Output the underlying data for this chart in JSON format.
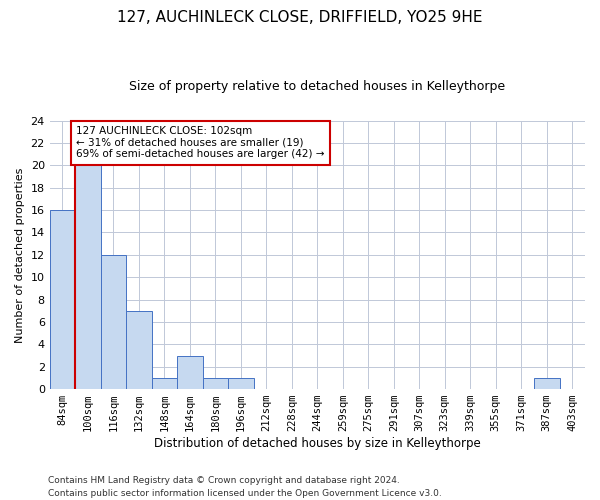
{
  "title": "127, AUCHINLECK CLOSE, DRIFFIELD, YO25 9HE",
  "subtitle": "Size of property relative to detached houses in Kelleythorpe",
  "xlabel": "Distribution of detached houses by size in Kelleythorpe",
  "ylabel": "Number of detached properties",
  "footer_line1": "Contains HM Land Registry data © Crown copyright and database right 2024.",
  "footer_line2": "Contains public sector information licensed under the Open Government Licence v3.0.",
  "categories": [
    "84sqm",
    "100sqm",
    "116sqm",
    "132sqm",
    "148sqm",
    "164sqm",
    "180sqm",
    "196sqm",
    "212sqm",
    "228sqm",
    "244sqm",
    "259sqm",
    "275sqm",
    "291sqm",
    "307sqm",
    "323sqm",
    "339sqm",
    "355sqm",
    "371sqm",
    "387sqm",
    "403sqm"
  ],
  "values": [
    16,
    20,
    12,
    7,
    1,
    3,
    1,
    1,
    0,
    0,
    0,
    0,
    0,
    0,
    0,
    0,
    0,
    0,
    0,
    1,
    0
  ],
  "bar_color": "#c6d9f0",
  "bar_edge_color": "#4472c4",
  "ylim": [
    0,
    24
  ],
  "yticks": [
    0,
    2,
    4,
    6,
    8,
    10,
    12,
    14,
    16,
    18,
    20,
    22,
    24
  ],
  "annotation_title": "127 AUCHINLECK CLOSE: 102sqm",
  "annotation_line1": "← 31% of detached houses are smaller (19)",
  "annotation_line2": "69% of semi-detached houses are larger (42) →",
  "annotation_box_color": "#ffffff",
  "annotation_box_edge": "#cc0000",
  "vline_x": 0.5,
  "vline_color": "#cc0000",
  "background_color": "#ffffff",
  "grid_color": "#c0c8d8"
}
